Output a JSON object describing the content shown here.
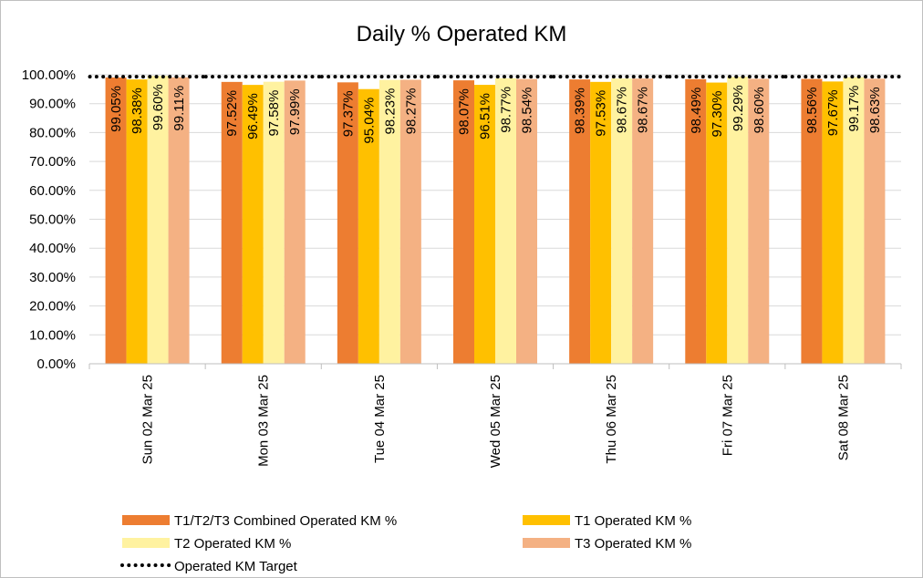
{
  "chart_data": {
    "type": "bar",
    "title": "Daily % Operated KM",
    "categories": [
      "Sun 02 Mar 25",
      "Mon 03 Mar 25",
      "Tue 04 Mar 25",
      "Wed 05 Mar 25",
      "Thu 06 Mar 25",
      "Fri 07 Mar 25",
      "Sat 08 Mar 25"
    ],
    "series": [
      {
        "name": "T1/T2/T3 Combined Operated KM %",
        "color": "#ED7D31",
        "values": [
          99.05,
          97.52,
          97.37,
          98.07,
          98.39,
          98.49,
          98.56
        ],
        "labels": [
          "99.05%",
          "97.52%",
          "97.37%",
          "98.07%",
          "98.39%",
          "98.49%",
          "98.56%"
        ]
      },
      {
        "name": "T1 Operated KM %",
        "color": "#FFC000",
        "values": [
          98.38,
          96.49,
          95.04,
          96.51,
          97.53,
          97.3,
          97.67
        ],
        "labels": [
          "98.38%",
          "96.49%",
          "95.04%",
          "96.51%",
          "97.53%",
          "97.30%",
          "97.67%"
        ]
      },
      {
        "name": "T2 Operated KM %",
        "color": "#FFF2A0",
        "values": [
          99.6,
          97.58,
          98.23,
          98.77,
          98.67,
          99.29,
          99.17
        ],
        "labels": [
          "99.60%",
          "97.58%",
          "98.23%",
          "98.77%",
          "98.67%",
          "99.29%",
          "99.17%"
        ]
      },
      {
        "name": "T3 Operated KM %",
        "color": "#F4B183",
        "values": [
          99.11,
          97.99,
          98.27,
          98.54,
          98.67,
          98.6,
          98.63
        ],
        "labels": [
          "99.11%",
          "97.99%",
          "98.27%",
          "98.54%",
          "98.67%",
          "98.60%",
          "98.63%"
        ]
      }
    ],
    "target": {
      "name": "Operated KM Target",
      "value": 99.0,
      "color": "#000000",
      "style": "dotted"
    },
    "yticks": [
      "0.00%",
      "10.00%",
      "20.00%",
      "30.00%",
      "40.00%",
      "50.00%",
      "60.00%",
      "70.00%",
      "80.00%",
      "90.00%",
      "100.00%"
    ],
    "ylim": [
      0,
      100
    ],
    "grid": true,
    "legend_position": "bottom"
  }
}
